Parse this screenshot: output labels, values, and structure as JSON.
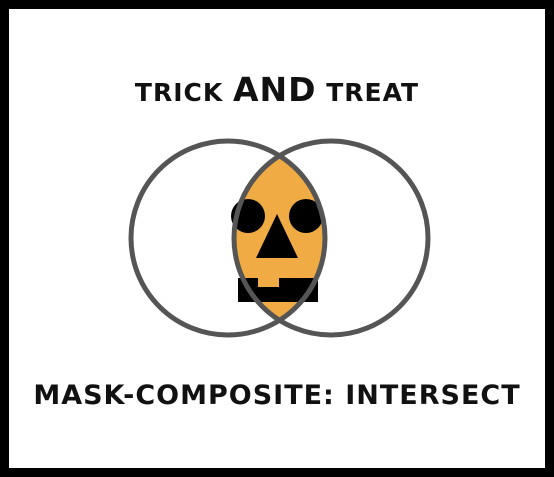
{
  "title": {
    "part1": "TRICK ",
    "part2": "AND",
    "part3": " TREAT"
  },
  "caption": "MASK-COMPOSITE: INTERSECT",
  "colors": {
    "background": "#000000",
    "panel": "#ffffff",
    "outline": "#555555",
    "pumpkin": "#f0ab45",
    "face": "#000000"
  },
  "icons": [
    "jack-o-lantern-face-icon"
  ]
}
